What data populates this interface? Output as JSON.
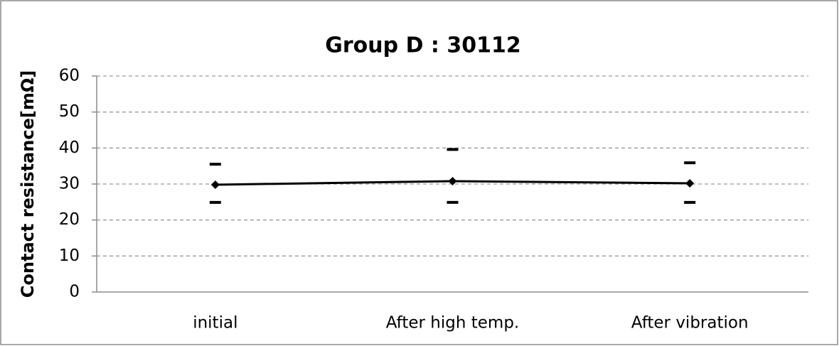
{
  "chart_data": {
    "type": "line",
    "title": "Group D : 30112",
    "y_label": "Contact resistance[mΩ]",
    "categories": [
      "initial",
      "After high temp.",
      "After vibration"
    ],
    "series": [
      {
        "color": "#000000",
        "marker": "diamond",
        "line": true,
        "values": [
          29.8,
          30.8,
          30.2
        ]
      },
      {
        "color": "#000000",
        "marker": "dash",
        "line": false,
        "values": [
          35.5,
          39.6,
          35.9
        ]
      },
      {
        "color": "#000000",
        "marker": "dash",
        "line": false,
        "values": [
          24.9,
          24.9,
          24.9
        ]
      }
    ],
    "ylim": [
      0,
      60
    ],
    "yticks": [
      0,
      10,
      20,
      30,
      40,
      50,
      60
    ],
    "grid": true
  }
}
